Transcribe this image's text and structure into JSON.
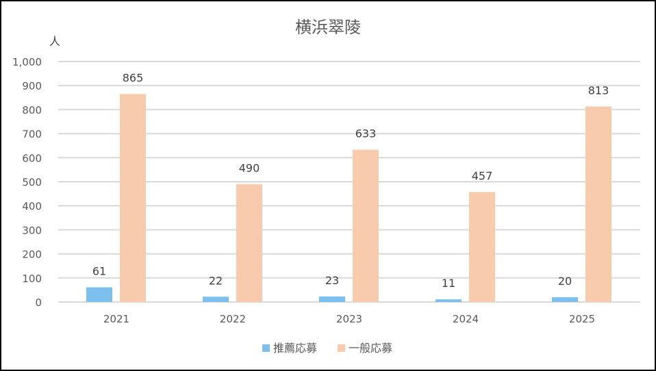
{
  "chart_data": {
    "type": "bar",
    "title": "横浜翠陵",
    "ylabel": "人",
    "xlabel": "",
    "categories": [
      "2021",
      "2022",
      "2023",
      "2024",
      "2025"
    ],
    "series": [
      {
        "name": "推薦応募",
        "values": [
          61,
          22,
          23,
          11,
          20
        ],
        "color": "#7DC0EE"
      },
      {
        "name": "一般応募",
        "values": [
          865,
          490,
          633,
          457,
          813
        ],
        "color": "#F7CBAC"
      }
    ],
    "ylim": [
      0,
      1000
    ],
    "yticks": [
      "0",
      "100",
      "200",
      "300",
      "400",
      "500",
      "600",
      "700",
      "800",
      "900",
      "1,000"
    ],
    "grid": true,
    "legend": "bottom",
    "data_labels": true
  }
}
